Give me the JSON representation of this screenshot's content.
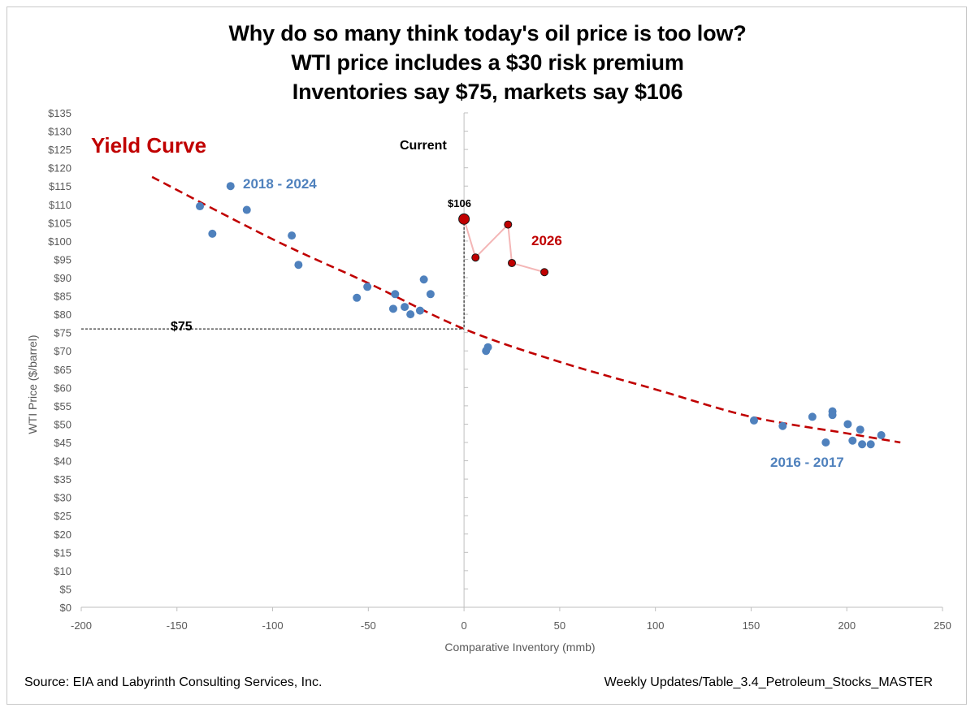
{
  "header": {
    "line1": "Why do so many think today's oil price is too low?",
    "line2": "WTI price includes a $30 risk premium",
    "line3": "Inventories say $75, markets say $106"
  },
  "footer": {
    "source": "Source: EIA and Labyrinth Consulting Services, Inc.",
    "file": "Weekly Updates/Table_3.4_Petroleum_Stocks_MASTER"
  },
  "colors": {
    "points": "#4f81bd",
    "trend": "#c00000",
    "highlight": "#c00000",
    "highlight_line": "#f4b6b6",
    "label_blue": "#4f81bd",
    "label_red": "#c00000"
  },
  "chart_data": {
    "type": "scatter",
    "xlabel": "Comparative Inventory (mmb)",
    "ylabel": "WTI Price ($/barrel)",
    "xlim": [
      -200,
      250
    ],
    "ylim": [
      0,
      135
    ],
    "x_ticks": [
      -200,
      -150,
      -100,
      -50,
      0,
      50,
      100,
      150,
      200,
      250
    ],
    "y_ticks": [
      0,
      5,
      10,
      15,
      20,
      25,
      30,
      35,
      40,
      45,
      50,
      55,
      60,
      65,
      70,
      75,
      80,
      85,
      90,
      95,
      100,
      105,
      110,
      115,
      120,
      125,
      130,
      135
    ],
    "y_tick_prefix": "$",
    "grid": false,
    "series": [
      {
        "name": "2018 - 2024",
        "points": [
          [
            -138,
            109.5
          ],
          [
            -131.5,
            102
          ],
          [
            -122,
            115
          ],
          [
            -113.5,
            108.5
          ],
          [
            -90,
            101.5
          ],
          [
            -86.5,
            93.5
          ],
          [
            -56,
            84.5
          ],
          [
            -50.5,
            87.5
          ],
          [
            -37,
            81.5
          ],
          [
            -36,
            85.5
          ],
          [
            -31,
            82
          ],
          [
            -28,
            80
          ],
          [
            -23,
            81
          ],
          [
            -21,
            89.5
          ],
          [
            -17.5,
            85.5
          ],
          [
            11.5,
            70
          ],
          [
            12.5,
            71
          ]
        ]
      },
      {
        "name": "2016 - 2017",
        "points": [
          [
            151.5,
            51
          ],
          [
            166.5,
            49.5
          ],
          [
            182,
            52
          ],
          [
            189,
            45
          ],
          [
            192.5,
            53.5
          ],
          [
            192.5,
            52.5
          ],
          [
            200.5,
            50
          ],
          [
            203,
            45.5
          ],
          [
            207,
            48.5
          ],
          [
            208,
            44.5
          ],
          [
            212.5,
            44.5
          ],
          [
            218,
            47
          ]
        ]
      },
      {
        "name": "2026",
        "points": [
          [
            0,
            106
          ],
          [
            6,
            95.5
          ],
          [
            23,
            104.5
          ],
          [
            25,
            94
          ],
          [
            42,
            91.5
          ]
        ]
      }
    ],
    "trendline": {
      "name": "Yield Curve",
      "x_range": [
        -163,
        228
      ],
      "points": [
        [
          -163,
          117.5
        ],
        [
          -100,
          100.5
        ],
        [
          -50,
          88.5
        ],
        [
          0,
          76
        ],
        [
          50,
          67
        ],
        [
          100,
          59.5
        ],
        [
          150,
          52
        ],
        [
          200,
          47.5
        ],
        [
          228,
          45
        ]
      ]
    },
    "annotations": {
      "yield_curve": "Yield Curve",
      "label_2018_2024": "2018 - 2024",
      "label_2016_2017": "2016 - 2017",
      "label_2026": "2026",
      "current": "Current",
      "current_price": "$106",
      "implied_price": "$75"
    },
    "reference_lines": {
      "vertical_x": 0,
      "horizontal_y": 76
    }
  }
}
